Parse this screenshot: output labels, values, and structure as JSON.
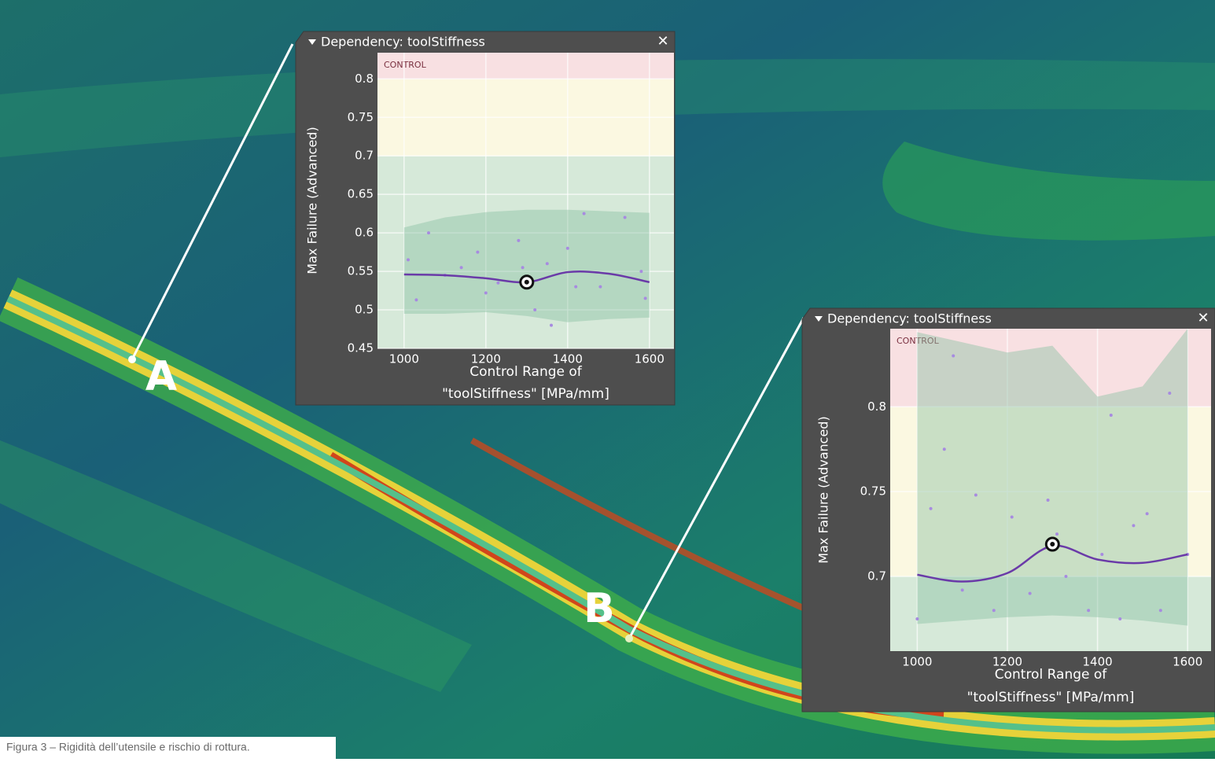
{
  "chart_data": [
    {
      "type": "line",
      "title": "Dependency: toolStiffness",
      "zone_label": "CONTROL",
      "ylabel": "Max Failure (Advanced)",
      "xlabel": [
        "Control Range of",
        "\"toolStiffness\" [MPa/mm]"
      ],
      "xlim": [
        935,
        1660
      ],
      "ylim": [
        0.45,
        0.834
      ],
      "xticks": [
        1000,
        1200,
        1400,
        1600
      ],
      "yticks": [
        0.45,
        0.5,
        0.55,
        0.6,
        0.65,
        0.7,
        0.75,
        0.8
      ],
      "thresholds": [
        0.7,
        0.8
      ],
      "zone_colors": [
        "#d6e9d9",
        "#fbf8e1",
        "#f8e0e2"
      ],
      "grid": true,
      "band": {
        "x": [
          1000,
          1100,
          1200,
          1300,
          1400,
          1500,
          1600
        ],
        "upper": [
          0.607,
          0.62,
          0.627,
          0.63,
          0.63,
          0.628,
          0.626
        ],
        "lower": [
          0.495,
          0.495,
          0.497,
          0.492,
          0.484,
          0.488,
          0.49
        ],
        "color": "#8cc0a4"
      },
      "line": {
        "x": [
          1000,
          1100,
          1200,
          1300,
          1400,
          1500,
          1600
        ],
        "y": [
          0.546,
          0.545,
          0.541,
          0.536,
          0.549,
          0.547,
          0.536
        ],
        "color": "#6a3aa8"
      },
      "points": {
        "x": [
          1010,
          1030,
          1060,
          1100,
          1140,
          1180,
          1200,
          1230,
          1280,
          1290,
          1320,
          1350,
          1360,
          1400,
          1420,
          1440,
          1480,
          1540,
          1580,
          1590
        ],
        "y": [
          0.565,
          0.513,
          0.6,
          0.545,
          0.555,
          0.575,
          0.522,
          0.535,
          0.59,
          0.555,
          0.5,
          0.56,
          0.48,
          0.58,
          0.53,
          0.625,
          0.53,
          0.62,
          0.55,
          0.515
        ],
        "color": "#a78be0"
      },
      "selected": {
        "x": 1300,
        "y": 0.536
      }
    },
    {
      "type": "line",
      "title": "Dependency: toolStiffness",
      "zone_label": "CONTROL",
      "ylabel": "Max Failure (Advanced)",
      "xlabel": [
        "Control Range of",
        "\"toolStiffness\" [MPa/mm]"
      ],
      "xlim": [
        940,
        1652
      ],
      "ylim": [
        0.656,
        0.846
      ],
      "xticks": [
        1000,
        1200,
        1400,
        1600
      ],
      "yticks": [
        0.7,
        0.75,
        0.8
      ],
      "thresholds": [
        0.7,
        0.8
      ],
      "zone_colors": [
        "#d6e9d9",
        "#fbf8e1",
        "#f8e0e2"
      ],
      "grid": true,
      "band": {
        "x": [
          1000,
          1100,
          1200,
          1300,
          1400,
          1500,
          1600
        ],
        "upper": [
          0.844,
          0.838,
          0.832,
          0.836,
          0.806,
          0.812,
          0.846
        ],
        "lower": [
          0.672,
          0.674,
          0.676,
          0.677,
          0.676,
          0.674,
          0.671
        ],
        "color": "#8cc0a4"
      },
      "line": {
        "x": [
          1000,
          1100,
          1200,
          1300,
          1400,
          1500,
          1600
        ],
        "y": [
          0.701,
          0.697,
          0.702,
          0.718,
          0.71,
          0.708,
          0.713
        ],
        "color": "#6a3aa8"
      },
      "points": {
        "x": [
          1000,
          1030,
          1060,
          1080,
          1100,
          1130,
          1170,
          1210,
          1250,
          1290,
          1310,
          1330,
          1380,
          1410,
          1430,
          1450,
          1480,
          1510,
          1540,
          1560,
          1600
        ],
        "y": [
          0.675,
          0.74,
          0.775,
          0.83,
          0.692,
          0.748,
          0.68,
          0.735,
          0.69,
          0.745,
          0.725,
          0.7,
          0.68,
          0.713,
          0.795,
          0.675,
          0.73,
          0.737,
          0.68,
          0.808,
          0.713
        ],
        "color": "#a78be0"
      },
      "selected": {
        "x": 1300,
        "y": 0.719
      }
    }
  ],
  "markers": [
    "A",
    "B"
  ],
  "caption": "Figura 3 – Rigidità dell’utensile e rischio di rottura."
}
